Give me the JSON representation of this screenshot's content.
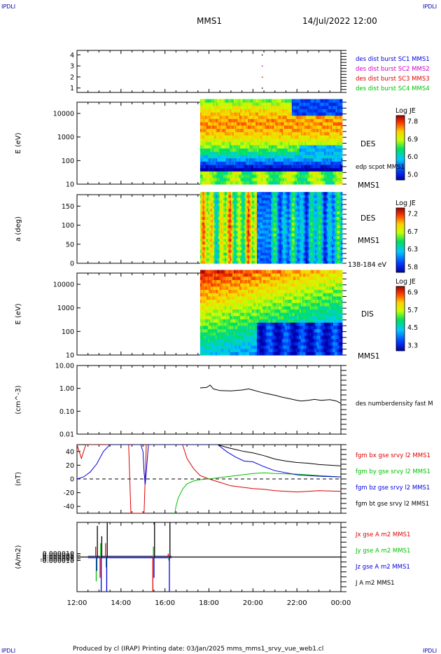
{
  "corner_labels": {
    "top_left": "IPDLI",
    "top_right": "IPDLI",
    "bottom_left": "IPDLI",
    "bottom_right": "IPDLI"
  },
  "header": {
    "mission": "MMS1",
    "datetime": "14/Jul/2022 12:00"
  },
  "footer": {
    "text": "Produced by cl (IRAP)   Printing date: 03/Jan/2025   mms_mms1_srvy_vue_web1.cl"
  },
  "colors": {
    "red": "#dd0000",
    "green": "#00c000",
    "blue": "#0000dd",
    "magenta": "#cc00cc",
    "black": "#000000",
    "axis_blue": "#0000aa"
  },
  "chart_data": [
    {
      "id": "burst",
      "type": "scatter",
      "ylabel": "",
      "ylim": [
        0.6,
        4.4
      ],
      "yticks": [
        1,
        2,
        3,
        4
      ],
      "x": [
        "12:00",
        "14:00",
        "16:00",
        "18:00",
        "20:00",
        "22:00",
        "00:00"
      ],
      "points": [
        {
          "t": 20.4,
          "y": 4,
          "color": "#000000"
        },
        {
          "t": 20.4,
          "y": 3,
          "color": "#cc00cc"
        },
        {
          "t": 20.4,
          "y": 2,
          "color": "#dd0000"
        },
        {
          "t": 20.4,
          "y": 1,
          "color": "#000000"
        }
      ],
      "legend": [
        {
          "label": "des dist burst SC1 MMS1",
          "color": "#0000dd"
        },
        {
          "label": "des dist burst SC2 MMS2",
          "color": "#cc00cc"
        },
        {
          "label": "des dist burst SC3 MMS3",
          "color": "#dd0000"
        },
        {
          "label": "des dist burst SC4 MMS4",
          "color": "#00c000"
        }
      ]
    },
    {
      "id": "des_energy",
      "type": "heatmap",
      "ylabel": "E (eV)",
      "yscale": "log",
      "ylim": [
        10,
        30000
      ],
      "yticks": [
        "10",
        "100",
        "1000",
        "10000"
      ],
      "data_start": 17.6,
      "right_labels": {
        "instrument": "DES",
        "note": "edp scpot MMS1",
        "mission": "MMS1"
      },
      "colorbar": {
        "title": "Log JE",
        "ticks": [
          "7.8",
          "6.9",
          "6.0",
          "5.0"
        ],
        "min": 5.0,
        "max": 7.8
      }
    },
    {
      "id": "des_pitch",
      "type": "heatmap",
      "ylabel": "a (deg)",
      "ylim": [
        0,
        180
      ],
      "yticks": [
        "0",
        "50",
        "100",
        "150"
      ],
      "data_start": 17.6,
      "right_labels": {
        "instrument": "DES",
        "mission": "MMS1",
        "range": "138-184 eV"
      },
      "colorbar": {
        "title": "Log JE",
        "ticks": [
          "7.2",
          "6.7",
          "6.3",
          "5.8"
        ],
        "min": 5.8,
        "max": 7.2
      }
    },
    {
      "id": "dis_energy",
      "type": "heatmap",
      "ylabel": "E (eV)",
      "yscale": "log",
      "ylim": [
        10,
        30000
      ],
      "yticks": [
        "10",
        "100",
        "1000",
        "10000"
      ],
      "data_start": 17.6,
      "right_labels": {
        "instrument": "DIS",
        "mission": "MMS1"
      },
      "colorbar": {
        "title": "Log JE",
        "ticks": [
          "6.9",
          "5.7",
          "4.5",
          "3.3"
        ],
        "min": 3.3,
        "max": 6.9
      }
    },
    {
      "id": "density",
      "type": "line",
      "ylabel": "(cm^-3)",
      "yscale": "log",
      "ylim": [
        0.01,
        10
      ],
      "yticks": [
        "0.01",
        "0.10",
        "1.00",
        "10.00"
      ],
      "series": [
        {
          "name": "des numberdensity fast M",
          "color": "#000000",
          "t": [
            17.6,
            17.9,
            18.05,
            18.2,
            18.5,
            19.0,
            19.5,
            19.8,
            20.0,
            20.3,
            20.6,
            21.0,
            21.3,
            21.7,
            22.0,
            22.2,
            22.5,
            22.8,
            23.1,
            23.5,
            23.8,
            24.0
          ],
          "y": [
            1.05,
            1.1,
            1.4,
            0.95,
            0.8,
            0.78,
            0.85,
            0.95,
            0.85,
            0.7,
            0.6,
            0.5,
            0.42,
            0.35,
            0.3,
            0.28,
            0.3,
            0.33,
            0.3,
            0.32,
            0.28,
            0.22
          ]
        }
      ]
    },
    {
      "id": "magnetic",
      "type": "line",
      "ylabel": "(nT)",
      "ylim": [
        -50,
        50
      ],
      "yticks": [
        "-40",
        "-20",
        "0",
        "20",
        "40"
      ],
      "zero_line": true,
      "series": [
        {
          "name": "fgm bx gse srvy l2 MMS1",
          "color": "#dd0000",
          "t": [
            12.0,
            12.1,
            12.2,
            12.3,
            12.4,
            14.35,
            14.4,
            14.45,
            15.05,
            15.1,
            15.15,
            16.8,
            17.0,
            17.3,
            17.6,
            18.0,
            18.5,
            19.0,
            19.5,
            20.0,
            20.5,
            21.0,
            22.0,
            23.0,
            24.0
          ],
          "y": [
            50,
            40,
            30,
            40,
            50,
            50,
            0,
            -50,
            -50,
            0,
            50,
            50,
            30,
            15,
            5,
            0,
            -5,
            -10,
            -12,
            -14,
            -15,
            -17,
            -19,
            -17,
            -18
          ]
        },
        {
          "name": "fgm by gse srvy l2 MMS1",
          "color": "#00c000",
          "t": [
            16.45,
            16.5,
            16.6,
            16.8,
            17.0,
            17.3,
            17.6,
            18.0,
            18.5,
            19.0,
            19.5,
            20.0,
            20.5,
            21.0,
            22.0,
            23.0,
            24.0
          ],
          "y": [
            -50,
            -40,
            -28,
            -15,
            -7,
            -3,
            -1,
            0,
            2,
            4,
            6,
            8,
            9,
            8,
            7,
            5,
            3
          ]
        },
        {
          "name": "fgm bz gse srvy l2 MMS1",
          "color": "#0000dd",
          "t": [
            12.0,
            12.3,
            12.6,
            12.9,
            13.2,
            13.5,
            14.9,
            15.0,
            15.05,
            15.1,
            15.15,
            15.2,
            15.25,
            15.3,
            18.4,
            18.8,
            19.2,
            19.6,
            20.0,
            20.5,
            21.0,
            22.0,
            23.0,
            24.0
          ],
          "y": [
            0,
            3,
            10,
            22,
            40,
            50,
            50,
            40,
            10,
            -8,
            10,
            30,
            50,
            50,
            50,
            40,
            32,
            26,
            25,
            18,
            12,
            6,
            4,
            3
          ]
        },
        {
          "name": "fgm bt gse srvy l2 MMS1",
          "color": "#000000",
          "t": [
            18.4,
            18.8,
            19.2,
            19.6,
            20.0,
            20.5,
            21.0,
            21.5,
            22.0,
            22.5,
            23.0,
            23.5,
            24.0
          ],
          "y": [
            50,
            46,
            43,
            40,
            38,
            34,
            29,
            26,
            24,
            23,
            21,
            20,
            19
          ]
        }
      ]
    },
    {
      "id": "current",
      "type": "line",
      "ylabel": "(A/m2)",
      "ylim": [
        -0.0001,
        0.0001
      ],
      "yticks": [
        "-0.000010",
        "-0.000005",
        "0.000000",
        "0.000005",
        "0.000010"
      ],
      "series": [
        {
          "name": "Jx gse A m2 MMS1",
          "color": "#dd0000"
        },
        {
          "name": "Jy gse A m2 MMS1",
          "color": "#00c000"
        },
        {
          "name": "Jz gse A m2 MMS1",
          "color": "#0000dd"
        },
        {
          "name": "J A m2 MMS1",
          "color": "#000000"
        }
      ],
      "spikes": [
        {
          "t": 12.85,
          "values": [
            3e-05,
            -7e-05,
            -4e-05,
            9e-05
          ]
        },
        {
          "t": 13.05,
          "values": [
            -6e-05,
            4e-05,
            -0.0001,
            6e-05
          ]
        },
        {
          "t": 13.3,
          "values": [
            4e-05,
            -3e-05,
            -0.0001,
            0.0001
          ]
        },
        {
          "t": 15.45,
          "values": [
            -0.0001,
            3e-05,
            -6e-05,
            0.0001
          ]
        },
        {
          "t": 16.15,
          "values": [
            1e-05,
            -1e-05,
            -0.0001,
            0.0001
          ]
        }
      ]
    }
  ],
  "x_axis": {
    "ticks": [
      "12:00",
      "14:00",
      "16:00",
      "18:00",
      "20:00",
      "22:00",
      "00:00"
    ]
  }
}
